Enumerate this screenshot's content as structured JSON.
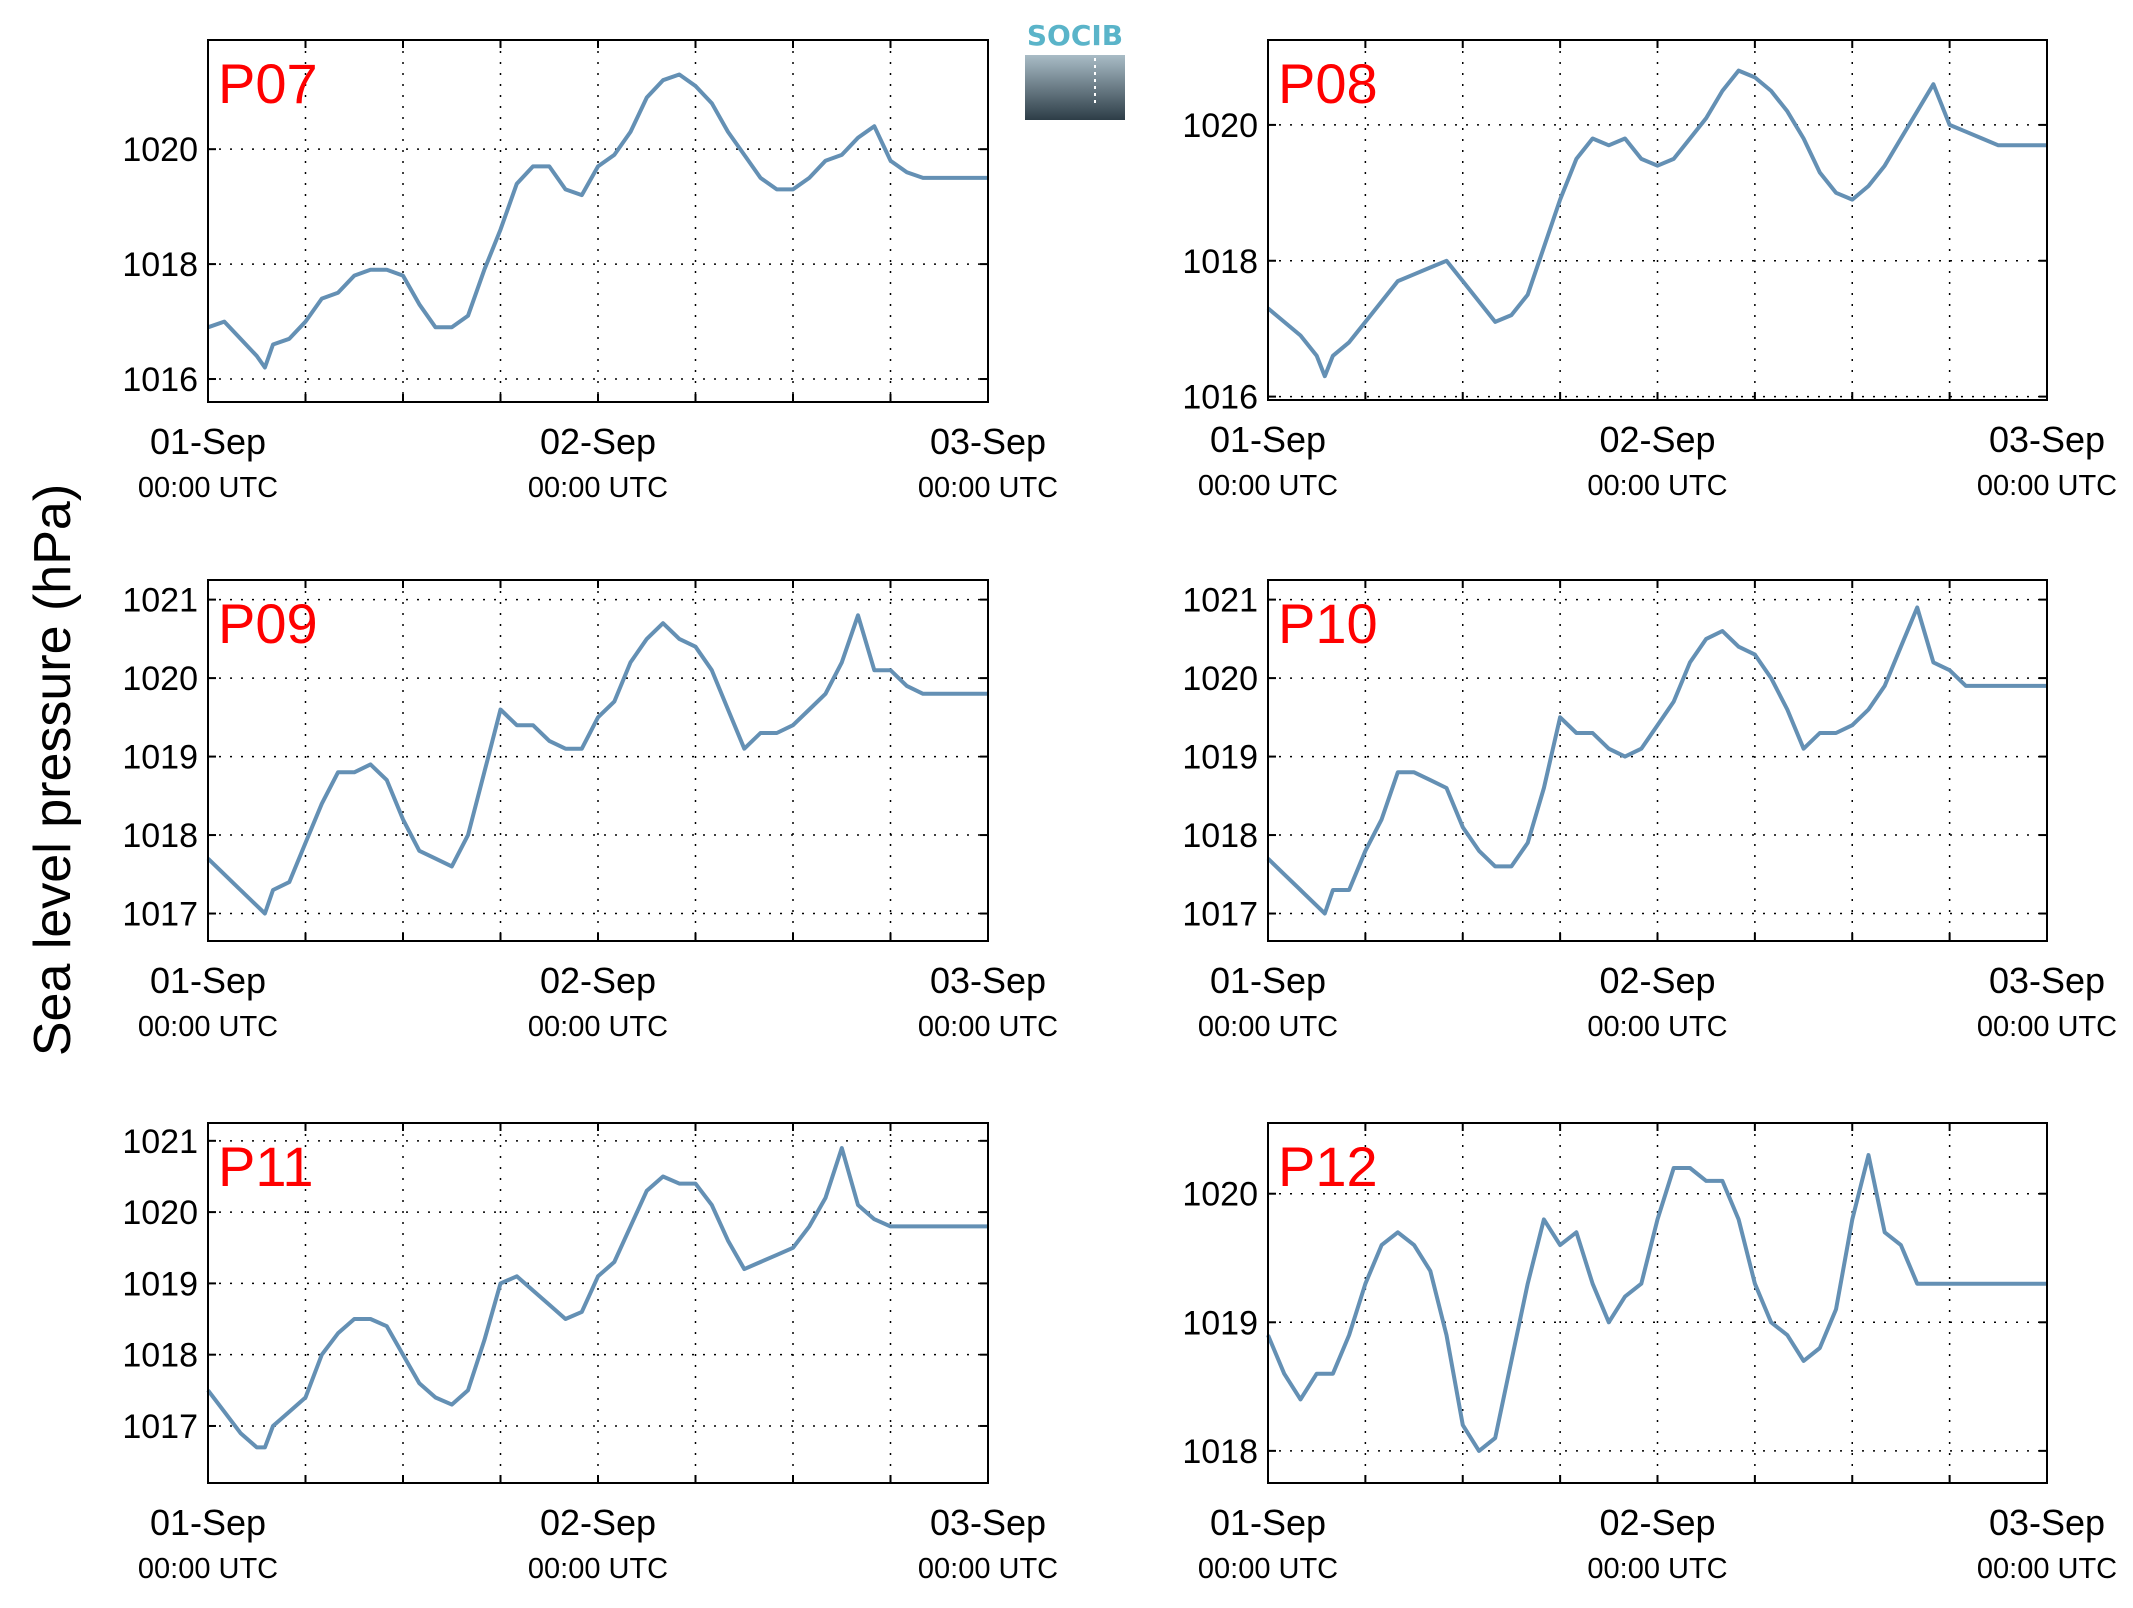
{
  "ylabel": "Sea level pressure (hPa)",
  "logo": {
    "text": "SOCIB",
    "color": "#5ab4c9"
  },
  "style": {
    "line_color": "#6490b4",
    "label_color": "#ff0000"
  },
  "chart_data": [
    {
      "type": "line",
      "label": "P07",
      "xticks": [
        {
          "date": "01-Sep",
          "time": "00:00 UTC"
        },
        {
          "date": "02-Sep",
          "time": "00:00 UTC"
        },
        {
          "date": "03-Sep",
          "time": "00:00 UTC"
        }
      ],
      "xlim": [
        0,
        48
      ],
      "ylim": [
        1015.6,
        1021.9
      ],
      "yticks": [
        1016,
        1018,
        1020
      ],
      "grid": true,
      "x": [
        0,
        1,
        2,
        3,
        3.5,
        4,
        5,
        6,
        7,
        8,
        9,
        10,
        11,
        12,
        13,
        14,
        15,
        16,
        17,
        18,
        19,
        20,
        21,
        22,
        23,
        24,
        25,
        26,
        27,
        28,
        29,
        30,
        31,
        32,
        33,
        34,
        35,
        36,
        37,
        38,
        39,
        40,
        41,
        42,
        43,
        44,
        45,
        46,
        46.5,
        47,
        48
      ],
      "values": [
        1016.9,
        1017.0,
        1016.7,
        1016.4,
        1016.2,
        1016.6,
        1016.7,
        1017.0,
        1017.4,
        1017.5,
        1017.8,
        1017.9,
        1017.9,
        1017.8,
        1017.3,
        1016.9,
        1016.9,
        1017.1,
        1017.9,
        1018.6,
        1019.4,
        1019.7,
        1019.7,
        1019.3,
        1019.2,
        1019.7,
        1019.9,
        1020.3,
        1020.9,
        1021.2,
        1021.3,
        1021.1,
        1020.8,
        1020.3,
        1019.9,
        1019.5,
        1019.3,
        1019.3,
        1019.5,
        1019.8,
        1019.9,
        1020.2,
        1020.4,
        1019.8,
        1019.6,
        1019.5,
        1019.5,
        1019.5,
        1019.5,
        1019.5,
        1019.5
      ]
    },
    {
      "type": "line",
      "label": "P08",
      "xticks": [
        {
          "date": "01-Sep",
          "time": "00:00 UTC"
        },
        {
          "date": "02-Sep",
          "time": "00:00 UTC"
        },
        {
          "date": "03-Sep",
          "time": "00:00 UTC"
        }
      ],
      "xlim": [
        0,
        48
      ],
      "ylim": [
        1015.95,
        1021.25
      ],
      "yticks": [
        1016,
        1018,
        1020
      ],
      "grid": true,
      "x": [
        0,
        1,
        2,
        3,
        3.5,
        4,
        5,
        6,
        7,
        8,
        9,
        10,
        11,
        12,
        13,
        14,
        15,
        16,
        17,
        18,
        19,
        20,
        21,
        22,
        23,
        24,
        25,
        26,
        27,
        28,
        29,
        30,
        31,
        32,
        33,
        34,
        35,
        36,
        37,
        38,
        39,
        40,
        41,
        42,
        43,
        44,
        45,
        46,
        47,
        48
      ],
      "values": [
        1017.3,
        1017.1,
        1016.9,
        1016.6,
        1016.3,
        1016.6,
        1016.8,
        1017.1,
        1017.4,
        1017.7,
        1017.8,
        1017.9,
        1018.0,
        1017.7,
        1017.4,
        1017.1,
        1017.2,
        1017.5,
        1018.2,
        1018.9,
        1019.5,
        1019.8,
        1019.7,
        1019.8,
        1019.5,
        1019.4,
        1019.5,
        1019.8,
        1020.1,
        1020.5,
        1020.8,
        1020.7,
        1020.5,
        1020.2,
        1019.8,
        1019.3,
        1019.0,
        1018.9,
        1019.1,
        1019.4,
        1019.8,
        1020.2,
        1020.6,
        1020.0,
        1019.9,
        1019.8,
        1019.7,
        1019.7,
        1019.7,
        1019.7
      ]
    },
    {
      "type": "line",
      "label": "P09",
      "xticks": [
        {
          "date": "01-Sep",
          "time": "00:00 UTC"
        },
        {
          "date": "02-Sep",
          "time": "00:00 UTC"
        },
        {
          "date": "03-Sep",
          "time": "00:00 UTC"
        }
      ],
      "xlim": [
        0,
        48
      ],
      "ylim": [
        1016.65,
        1021.25
      ],
      "yticks": [
        1017,
        1018,
        1019,
        1020,
        1021
      ],
      "grid": true,
      "x": [
        0,
        1,
        2,
        3,
        3.5,
        4,
        5,
        6,
        7,
        8,
        9,
        10,
        11,
        12,
        13,
        14,
        15,
        16,
        17,
        18,
        19,
        20,
        21,
        22,
        23,
        24,
        25,
        26,
        27,
        28,
        29,
        30,
        31,
        32,
        33,
        34,
        35,
        36,
        37,
        38,
        39,
        40,
        41,
        42,
        43,
        44,
        45,
        46,
        47,
        48
      ],
      "values": [
        1017.7,
        1017.5,
        1017.3,
        1017.1,
        1017.0,
        1017.3,
        1017.4,
        1017.9,
        1018.4,
        1018.8,
        1018.8,
        1018.9,
        1018.7,
        1018.2,
        1017.8,
        1017.7,
        1017.6,
        1018.0,
        1018.8,
        1019.6,
        1019.4,
        1019.4,
        1019.2,
        1019.1,
        1019.1,
        1019.5,
        1019.7,
        1020.2,
        1020.5,
        1020.7,
        1020.5,
        1020.4,
        1020.1,
        1019.6,
        1019.1,
        1019.3,
        1019.3,
        1019.4,
        1019.6,
        1019.8,
        1020.2,
        1020.8,
        1020.1,
        1020.1,
        1019.9,
        1019.8,
        1019.8,
        1019.8,
        1019.8,
        1019.8
      ]
    },
    {
      "type": "line",
      "label": "P10",
      "xticks": [
        {
          "date": "01-Sep",
          "time": "00:00 UTC"
        },
        {
          "date": "02-Sep",
          "time": "00:00 UTC"
        },
        {
          "date": "03-Sep",
          "time": "00:00 UTC"
        }
      ],
      "xlim": [
        0,
        48
      ],
      "ylim": [
        1016.65,
        1021.25
      ],
      "yticks": [
        1017,
        1018,
        1019,
        1020,
        1021
      ],
      "grid": true,
      "x": [
        0,
        1,
        2,
        3,
        3.5,
        4,
        5,
        6,
        7,
        8,
        9,
        10,
        11,
        12,
        13,
        14,
        15,
        16,
        17,
        18,
        19,
        20,
        21,
        22,
        23,
        24,
        25,
        26,
        27,
        28,
        29,
        30,
        31,
        32,
        33,
        34,
        35,
        36,
        37,
        38,
        39,
        40,
        41,
        42,
        43,
        44,
        45,
        46,
        47,
        48
      ],
      "values": [
        1017.7,
        1017.5,
        1017.3,
        1017.1,
        1017.0,
        1017.3,
        1017.3,
        1017.8,
        1018.2,
        1018.8,
        1018.8,
        1018.7,
        1018.6,
        1018.1,
        1017.8,
        1017.6,
        1017.6,
        1017.9,
        1018.6,
        1019.5,
        1019.3,
        1019.3,
        1019.1,
        1019.0,
        1019.1,
        1019.4,
        1019.7,
        1020.2,
        1020.5,
        1020.6,
        1020.4,
        1020.3,
        1020.0,
        1019.6,
        1019.1,
        1019.3,
        1019.3,
        1019.4,
        1019.6,
        1019.9,
        1020.4,
        1020.9,
        1020.2,
        1020.1,
        1019.9,
        1019.9,
        1019.9,
        1019.9,
        1019.9,
        1019.9
      ]
    },
    {
      "type": "line",
      "label": "P11",
      "xticks": [
        {
          "date": "01-Sep",
          "time": "00:00 UTC"
        },
        {
          "date": "02-Sep",
          "time": "00:00 UTC"
        },
        {
          "date": "03-Sep",
          "time": "00:00 UTC"
        }
      ],
      "xlim": [
        0,
        48
      ],
      "ylim": [
        1016.2,
        1021.25
      ],
      "yticks": [
        1017,
        1018,
        1019,
        1020,
        1021
      ],
      "grid": true,
      "x": [
        0,
        1,
        2,
        3,
        3.5,
        4,
        5,
        6,
        7,
        8,
        9,
        10,
        11,
        12,
        13,
        14,
        15,
        16,
        17,
        18,
        19,
        20,
        21,
        22,
        23,
        24,
        25,
        26,
        27,
        28,
        29,
        30,
        31,
        32,
        33,
        34,
        35,
        36,
        37,
        38,
        39,
        40,
        41,
        42,
        43,
        44,
        45,
        46,
        47,
        48
      ],
      "values": [
        1017.5,
        1017.2,
        1016.9,
        1016.7,
        1016.7,
        1017.0,
        1017.2,
        1017.4,
        1018.0,
        1018.3,
        1018.5,
        1018.5,
        1018.4,
        1018.0,
        1017.6,
        1017.4,
        1017.3,
        1017.5,
        1018.2,
        1019.0,
        1019.1,
        1018.9,
        1018.7,
        1018.5,
        1018.6,
        1019.1,
        1019.3,
        1019.8,
        1020.3,
        1020.5,
        1020.4,
        1020.4,
        1020.1,
        1019.6,
        1019.2,
        1019.3,
        1019.4,
        1019.5,
        1019.8,
        1020.2,
        1020.9,
        1020.1,
        1019.9,
        1019.8,
        1019.8,
        1019.8,
        1019.8,
        1019.8,
        1019.8,
        1019.8
      ]
    },
    {
      "type": "line",
      "label": "P12",
      "xticks": [
        {
          "date": "01-Sep",
          "time": "00:00 UTC"
        },
        {
          "date": "02-Sep",
          "time": "00:00 UTC"
        },
        {
          "date": "03-Sep",
          "time": "00:00 UTC"
        }
      ],
      "xlim": [
        0,
        48
      ],
      "ylim": [
        1017.75,
        1020.55
      ],
      "yticks": [
        1018,
        1019,
        1020
      ],
      "grid": true,
      "x": [
        0,
        1,
        2,
        3,
        4,
        5,
        6,
        7,
        8,
        9,
        10,
        11,
        12,
        13,
        14,
        15,
        16,
        17,
        18,
        19,
        20,
        21,
        22,
        23,
        24,
        25,
        26,
        27,
        28,
        29,
        30,
        31,
        32,
        33,
        34,
        35,
        36,
        37,
        38,
        39,
        40,
        41,
        42,
        43,
        44,
        45,
        46,
        47,
        48
      ],
      "values": [
        1018.9,
        1018.6,
        1018.4,
        1018.6,
        1018.6,
        1018.9,
        1019.3,
        1019.6,
        1019.7,
        1019.6,
        1019.4,
        1018.9,
        1018.2,
        1018.0,
        1018.1,
        1018.7,
        1019.3,
        1019.8,
        1019.6,
        1019.7,
        1019.3,
        1019.0,
        1019.2,
        1019.3,
        1019.8,
        1020.2,
        1020.2,
        1020.1,
        1020.1,
        1019.8,
        1019.3,
        1019.0,
        1018.9,
        1018.7,
        1018.8,
        1019.1,
        1019.8,
        1020.3,
        1019.7,
        1019.6,
        1019.3,
        1019.3,
        1019.3,
        1019.3,
        1019.3,
        1019.3,
        1019.3,
        1019.3,
        1019.3
      ]
    }
  ]
}
